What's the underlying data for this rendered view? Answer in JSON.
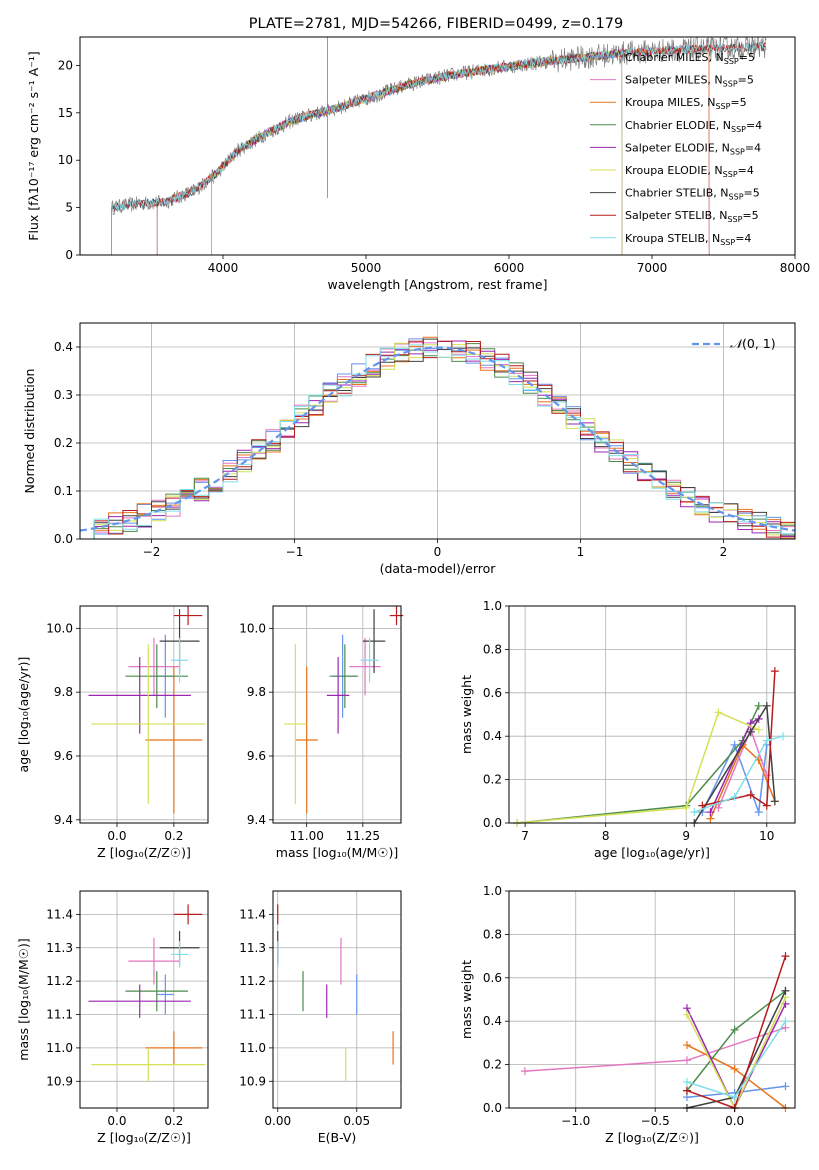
{
  "figure_title": "PLATE=2781, MJD=54266, FIBERID=0499, z=0.179",
  "colors": {
    "Chabrier MILES": "#6495ED",
    "Salpeter MILES": "#E377C2",
    "Kroupa MILES": "#E8731A",
    "Chabrier ELODIE": "#4C8C4C",
    "Salpeter ELODIE": "#9B27B0",
    "Kroupa ELODIE": "#D4E157",
    "Chabrier STELIB": "#404040",
    "Salpeter STELIB": "#B71C1C",
    "Kroupa STELIB": "#80DEEA",
    "normal": "#6495ED",
    "grid": "#b0b0b0",
    "spectrum_data": "#808080"
  },
  "chart_data": [
    {
      "id": "spectrum",
      "type": "line",
      "xlabel": "wavelength [Angstrom, rest frame]",
      "ylabel": "Flux [fλ10⁻¹⁷ erg cm⁻² s⁻¹ A⁻¹]",
      "xlim": [
        3000,
        8000
      ],
      "ylim": [
        0,
        23
      ],
      "xticks": [
        4000,
        5000,
        6000,
        7000,
        8000
      ],
      "yticks": [
        0,
        5,
        10,
        15,
        20
      ],
      "grid": false,
      "legend_position": "upper right",
      "series": [
        {
          "name": "Chabrier MILES, N$_{SSP}$=5",
          "label_main": "Chabrier MILES, N",
          "label_sub": "SSP",
          "label_end": "=5",
          "wl_range": [
            3540,
            7400
          ]
        },
        {
          "name": "Salpeter MILES, N$_{SSP}$=5",
          "label_main": "Salpeter MILES, N",
          "label_sub": "SSP",
          "label_end": "=5",
          "wl_range": [
            3540,
            7400
          ]
        },
        {
          "name": "Kroupa MILES, N$_{SSP}$=5",
          "label_main": "Kroupa MILES, N",
          "label_sub": "SSP",
          "label_end": "=5",
          "wl_range": [
            3540,
            7400
          ]
        },
        {
          "name": "Chabrier ELODIE, N$_{SSP}$=4",
          "label_main": "Chabrier ELODIE, N",
          "label_sub": "SSP",
          "label_end": "=4",
          "wl_range": [
            3920,
            6790
          ]
        },
        {
          "name": "Salpeter ELODIE, N$_{SSP}$=4",
          "label_main": "Salpeter ELODIE, N",
          "label_sub": "SSP",
          "label_end": "=4",
          "wl_range": [
            3920,
            6790
          ]
        },
        {
          "name": "Kroupa ELODIE, N$_{SSP}$=4",
          "label_main": "Kroupa ELODIE, N",
          "label_sub": "SSP",
          "label_end": "=4",
          "wl_range": [
            3920,
            6790
          ]
        },
        {
          "name": "Chabrier STELIB, N$_{SSP}$=5",
          "label_main": "Chabrier STELIB, N",
          "label_sub": "SSP",
          "label_end": "=5",
          "wl_range": [
            3220,
            7800
          ]
        },
        {
          "name": "Salpeter STELIB, N$_{SSP}$=5",
          "label_main": "Salpeter STELIB, N",
          "label_sub": "SSP",
          "label_end": "=5",
          "wl_range": [
            3220,
            7800
          ]
        },
        {
          "name": "Kroupa STELIB, N$_{SSP}$=4",
          "label_main": "Kroupa STELIB, N",
          "label_sub": "SSP",
          "label_end": "=4",
          "wl_range": [
            3220,
            7800
          ]
        }
      ],
      "continuum": {
        "wavelength": [
          3220,
          3400,
          3600,
          3800,
          3950,
          4100,
          4300,
          4500,
          4800,
          5000,
          5300,
          5600,
          5900,
          6200,
          6500,
          6800,
          7100,
          7500,
          7800
        ],
        "flux": [
          5.0,
          5.4,
          5.6,
          6.8,
          8.5,
          11.0,
          12.8,
          14.3,
          15.5,
          16.5,
          18.0,
          19.0,
          19.7,
          20.3,
          20.8,
          21.3,
          21.6,
          21.8,
          22.0
        ]
      },
      "spike": {
        "wavelength": 4730,
        "range": [
          6,
          23
        ]
      }
    },
    {
      "id": "residuals",
      "type": "histogram",
      "xlabel": "(data-model)/error",
      "ylabel": "Normed distribution",
      "xlim": [
        -2.5,
        2.5
      ],
      "ylim": [
        0,
        0.45
      ],
      "xticks": [
        -2,
        -1,
        0,
        1,
        2
      ],
      "yticks": [
        0.0,
        0.1,
        0.2,
        0.3,
        0.4
      ],
      "grid": true,
      "bin_width": 0.1,
      "legend_position": "upper right",
      "normal_label": "$\\mathcal{N}(0,1)$",
      "normal_label_parts": [
        "𝒩",
        "(0, 1)"
      ]
    },
    {
      "id": "age_vs_Z",
      "type": "errorbar",
      "xlabel": "Z [log₁₀(Z/Z☉)]",
      "ylabel": "age  [log₁₀(age/yr)]",
      "xlim": [
        -0.13,
        0.32
      ],
      "ylim": [
        9.39,
        10.07
      ],
      "xticks": [
        0.0,
        0.2
      ],
      "yticks": [
        9.4,
        9.6,
        9.8,
        10.0
      ],
      "grid": true,
      "points": [
        {
          "model": "Chabrier MILES",
          "x": 0.17,
          "xerr": 0.03,
          "y": 9.85,
          "yerr": 0.13
        },
        {
          "model": "Salpeter MILES",
          "x": 0.13,
          "xerr": 0.09,
          "y": 9.88,
          "yerr": 0.09
        },
        {
          "model": "Kroupa MILES",
          "x": 0.2,
          "xerr": 0.1,
          "y": 9.65,
          "yerr": 0.23
        },
        {
          "model": "Chabrier ELODIE",
          "x": 0.14,
          "xerr": 0.11,
          "y": 9.85,
          "yerr": 0.1
        },
        {
          "model": "Salpeter ELODIE",
          "x": 0.08,
          "xerr": 0.18,
          "y": 9.79,
          "yerr": 0.12
        },
        {
          "model": "Kroupa ELODIE",
          "x": 0.11,
          "xerr": 0.2,
          "y": 9.7,
          "yerr": 0.25
        },
        {
          "model": "Chabrier STELIB",
          "x": 0.22,
          "xerr": 0.07,
          "y": 9.96,
          "yerr": 0.1
        },
        {
          "model": "Salpeter STELIB",
          "x": 0.25,
          "xerr": 0.05,
          "y": 10.04,
          "yerr": 0.03
        },
        {
          "model": "Kroupa STELIB",
          "x": 0.22,
          "xerr": 0.03,
          "y": 9.9,
          "yerr": 0.07
        }
      ]
    },
    {
      "id": "age_vs_mass",
      "type": "errorbar",
      "xlabel": "mass [log₁₀(M/M☉)]",
      "ylabel": "",
      "xlim": [
        10.85,
        11.42
      ],
      "ylim": [
        9.39,
        10.07
      ],
      "xticks": [
        11.0,
        11.25
      ],
      "yticks": [
        9.4,
        9.6,
        9.8,
        10.0
      ],
      "grid": true,
      "points": [
        {
          "model": "Chabrier MILES",
          "x": 11.16,
          "xerr": 0.06,
          "y": 9.85,
          "yerr": 0.13
        },
        {
          "model": "Salpeter MILES",
          "x": 11.26,
          "xerr": 0.07,
          "y": 9.88,
          "yerr": 0.09
        },
        {
          "model": "Kroupa MILES",
          "x": 11.0,
          "xerr": 0.05,
          "y": 9.65,
          "yerr": 0.23
        },
        {
          "model": "Chabrier ELODIE",
          "x": 11.17,
          "xerr": 0.06,
          "y": 9.85,
          "yerr": 0.1
        },
        {
          "model": "Salpeter ELODIE",
          "x": 11.14,
          "xerr": 0.05,
          "y": 9.79,
          "yerr": 0.12
        },
        {
          "model": "Kroupa ELODIE",
          "x": 10.95,
          "xerr": 0.05,
          "y": 9.7,
          "yerr": 0.25
        },
        {
          "model": "Chabrier STELIB",
          "x": 11.3,
          "xerr": 0.05,
          "y": 9.96,
          "yerr": 0.1
        },
        {
          "model": "Salpeter STELIB",
          "x": 11.4,
          "xerr": 0.03,
          "y": 10.04,
          "yerr": 0.03
        },
        {
          "model": "Kroupa STELIB",
          "x": 11.28,
          "xerr": 0.04,
          "y": 9.9,
          "yerr": 0.07
        }
      ]
    },
    {
      "id": "mass_weight_vs_age",
      "type": "line",
      "xlabel": "age  [log₁₀(age/yr)]",
      "ylabel": "mass weight",
      "xlim": [
        6.8,
        10.35
      ],
      "ylim": [
        0,
        1
      ],
      "xticks": [
        7,
        8,
        9,
        10
      ],
      "yticks": [
        0.0,
        0.2,
        0.4,
        0.6,
        0.8,
        1.0
      ],
      "grid": true,
      "series": [
        {
          "model": "Chabrier MILES",
          "x": [
            9.2,
            9.6,
            9.9,
            10.0
          ],
          "y": [
            0.05,
            0.36,
            0.05,
            0.36
          ]
        },
        {
          "model": "Salpeter MILES",
          "x": [
            9.4,
            9.8,
            10.0
          ],
          "y": [
            0.07,
            0.43,
            0.22
          ]
        },
        {
          "model": "Kroupa MILES",
          "x": [
            9.3,
            9.7,
            9.9,
            10.1
          ],
          "y": [
            0.02,
            0.36,
            0.29,
            0.1
          ]
        },
        {
          "model": "Chabrier ELODIE",
          "x": [
            6.9,
            9.0,
            9.7,
            9.9
          ],
          "y": [
            0.0,
            0.08,
            0.38,
            0.54
          ]
        },
        {
          "model": "Salpeter ELODIE",
          "x": [
            9.3,
            9.8,
            9.9
          ],
          "y": [
            0.05,
            0.46,
            0.48
          ]
        },
        {
          "model": "Kroupa ELODIE",
          "x": [
            6.9,
            9.0,
            9.4,
            9.9
          ],
          "y": [
            0.0,
            0.07,
            0.51,
            0.43
          ]
        },
        {
          "model": "Chabrier STELIB",
          "x": [
            9.1,
            9.8,
            10.0,
            10.1
          ],
          "y": [
            0.0,
            0.42,
            0.54,
            0.1
          ]
        },
        {
          "model": "Salpeter STELIB",
          "x": [
            9.2,
            9.8,
            10.0,
            10.1
          ],
          "y": [
            0.08,
            0.13,
            0.08,
            0.7
          ]
        },
        {
          "model": "Kroupa STELIB",
          "x": [
            9.1,
            9.6,
            10.0,
            10.2
          ],
          "y": [
            0.05,
            0.12,
            0.38,
            0.4
          ]
        }
      ]
    },
    {
      "id": "mass_vs_Z",
      "type": "errorbar",
      "xlabel": "Z [log₁₀(Z/Z☉)]",
      "ylabel": "mass [log₁₀(M/M☉)]",
      "xlim": [
        -0.13,
        0.32
      ],
      "ylim": [
        10.82,
        11.47
      ],
      "xticks": [
        0.0,
        0.2
      ],
      "yticks": [
        10.9,
        11.0,
        11.1,
        11.2,
        11.3,
        11.4
      ],
      "grid": true,
      "points": [
        {
          "model": "Chabrier MILES",
          "x": 0.17,
          "xerr": 0.03,
          "y": 11.16,
          "yerr": 0.06
        },
        {
          "model": "Salpeter MILES",
          "x": 0.13,
          "xerr": 0.09,
          "y": 11.26,
          "yerr": 0.07
        },
        {
          "model": "Kroupa MILES",
          "x": 0.2,
          "xerr": 0.1,
          "y": 11.0,
          "yerr": 0.05
        },
        {
          "model": "Chabrier ELODIE",
          "x": 0.14,
          "xerr": 0.11,
          "y": 11.17,
          "yerr": 0.06
        },
        {
          "model": "Salpeter ELODIE",
          "x": 0.08,
          "xerr": 0.18,
          "y": 11.14,
          "yerr": 0.05
        },
        {
          "model": "Kroupa ELODIE",
          "x": 0.11,
          "xerr": 0.2,
          "y": 10.95,
          "yerr": 0.05
        },
        {
          "model": "Chabrier STELIB",
          "x": 0.22,
          "xerr": 0.07,
          "y": 11.3,
          "yerr": 0.05
        },
        {
          "model": "Salpeter STELIB",
          "x": 0.25,
          "xerr": 0.05,
          "y": 11.4,
          "yerr": 0.03
        },
        {
          "model": "Kroupa STELIB",
          "x": 0.22,
          "xerr": 0.03,
          "y": 11.28,
          "yerr": 0.04
        }
      ]
    },
    {
      "id": "mass_vs_ebv",
      "type": "errorbar",
      "xlabel": "E(B-V)",
      "ylabel": "",
      "xlim": [
        -0.003,
        0.078
      ],
      "ylim": [
        10.82,
        11.47
      ],
      "xticks": [
        0.0,
        0.05
      ],
      "xtick_labels": [
        "0.00",
        "0.05"
      ],
      "yticks": [
        10.9,
        11.0,
        11.1,
        11.2,
        11.3,
        11.4
      ],
      "grid": true,
      "points": [
        {
          "model": "Chabrier MILES",
          "x": 0.05,
          "xerr": 0,
          "y": 11.16,
          "yerr": 0.06
        },
        {
          "model": "Salpeter MILES",
          "x": 0.04,
          "xerr": 0,
          "y": 11.26,
          "yerr": 0.07
        },
        {
          "model": "Kroupa MILES",
          "x": 0.073,
          "xerr": 0,
          "y": 11.0,
          "yerr": 0.05
        },
        {
          "model": "Chabrier ELODIE",
          "x": 0.016,
          "xerr": 0,
          "y": 11.17,
          "yerr": 0.06
        },
        {
          "model": "Salpeter ELODIE",
          "x": 0.031,
          "xerr": 0,
          "y": 11.14,
          "yerr": 0.05
        },
        {
          "model": "Kroupa ELODIE",
          "x": 0.043,
          "xerr": 0,
          "y": 10.95,
          "yerr": 0.05
        },
        {
          "model": "Chabrier STELIB",
          "x": 0.0,
          "xerr": 0,
          "y": 11.3,
          "yerr": 0.05
        },
        {
          "model": "Salpeter STELIB",
          "x": 0.0,
          "xerr": 0,
          "y": 11.4,
          "yerr": 0.03
        },
        {
          "model": "Kroupa STELIB",
          "x": 0.0,
          "xerr": 0,
          "y": 11.28,
          "yerr": 0.04
        }
      ]
    },
    {
      "id": "mass_weight_vs_Z",
      "type": "line",
      "xlabel": "Z [log₁₀(Z/Z☉)]",
      "ylabel": "mass weight",
      "xlim": [
        -1.42,
        0.38
      ],
      "ylim": [
        0,
        1
      ],
      "xticks": [
        -1.0,
        -0.5,
        0.0
      ],
      "yticks": [
        0.0,
        0.2,
        0.4,
        0.6,
        0.8,
        1.0
      ],
      "grid": true,
      "series": [
        {
          "model": "Chabrier MILES",
          "x": [
            -0.3,
            0.0,
            0.32
          ],
          "y": [
            0.05,
            0.07,
            0.1
          ]
        },
        {
          "model": "Salpeter MILES",
          "x": [
            -1.32,
            -0.3,
            0.32
          ],
          "y": [
            0.17,
            0.22,
            0.37
          ]
        },
        {
          "model": "Kroupa MILES",
          "x": [
            -0.3,
            0.0,
            0.32
          ],
          "y": [
            0.29,
            0.18,
            0.0
          ]
        },
        {
          "model": "Chabrier ELODIE",
          "x": [
            -0.3,
            0.0,
            0.32
          ],
          "y": [
            0.08,
            0.36,
            0.54
          ]
        },
        {
          "model": "Salpeter ELODIE",
          "x": [
            -0.3,
            0.0,
            0.32
          ],
          "y": [
            0.46,
            0.0,
            0.48
          ]
        },
        {
          "model": "Kroupa ELODIE",
          "x": [
            -0.3,
            0.0,
            0.32
          ],
          "y": [
            0.43,
            0.0,
            0.51
          ]
        },
        {
          "model": "Chabrier STELIB",
          "x": [
            -0.3,
            0.0,
            0.32
          ],
          "y": [
            0.0,
            0.05,
            0.54
          ]
        },
        {
          "model": "Salpeter STELIB",
          "x": [
            -0.3,
            0.0,
            0.32
          ],
          "y": [
            0.08,
            0.0,
            0.7
          ]
        },
        {
          "model": "Kroupa STELIB",
          "x": [
            -0.3,
            0.0,
            0.32
          ],
          "y": [
            0.12,
            0.05,
            0.4
          ]
        }
      ]
    }
  ]
}
